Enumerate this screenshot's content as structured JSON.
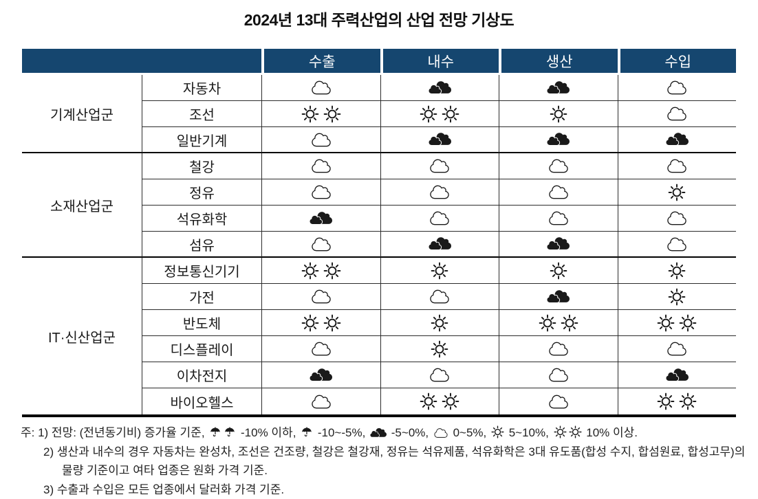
{
  "title": "2024년 13대 주력산업의 산업 전망 기상도",
  "colors": {
    "header_bg": "#15466F",
    "header_text": "#FFFFFF",
    "line": "#2B2B2B",
    "line_strong": "#000000",
    "text": "#1A1A1A"
  },
  "icon_names": {
    "sun": "sun-icon",
    "sun2": "double-sun-icon",
    "cloud": "cloud-outline-icon",
    "cloud-dark": "dark-cloud-icon",
    "umbrella": "umbrella-icon",
    "umbrella2": "double-umbrella-icon"
  },
  "table": {
    "columns": [
      "수출",
      "내수",
      "생산",
      "수입"
    ],
    "groups": [
      {
        "name": "기계산업군",
        "rows": [
          {
            "industry": "자동차",
            "icons": [
              "cloud",
              "cloud-dark",
              "cloud-dark",
              "cloud"
            ]
          },
          {
            "industry": "조선",
            "icons": [
              "sun2",
              "sun2",
              "sun",
              "cloud"
            ]
          },
          {
            "industry": "일반기계",
            "icons": [
              "cloud",
              "cloud-dark",
              "cloud-dark",
              "cloud-dark"
            ]
          }
        ]
      },
      {
        "name": "소재산업군",
        "rows": [
          {
            "industry": "철강",
            "icons": [
              "cloud",
              "cloud",
              "cloud",
              "cloud"
            ]
          },
          {
            "industry": "정유",
            "icons": [
              "cloud",
              "cloud",
              "cloud",
              "sun"
            ]
          },
          {
            "industry": "석유화학",
            "icons": [
              "cloud-dark",
              "cloud",
              "cloud",
              "cloud"
            ]
          },
          {
            "industry": "섬유",
            "icons": [
              "cloud",
              "cloud-dark",
              "cloud-dark",
              "cloud"
            ]
          }
        ]
      },
      {
        "name": "IT·신산업군",
        "rows": [
          {
            "industry": "정보통신기기",
            "icons": [
              "sun2",
              "sun",
              "sun",
              "sun"
            ]
          },
          {
            "industry": "가전",
            "icons": [
              "cloud",
              "cloud",
              "cloud-dark",
              "sun"
            ]
          },
          {
            "industry": "반도체",
            "icons": [
              "sun2",
              "sun",
              "sun2",
              "sun2"
            ]
          },
          {
            "industry": "디스플레이",
            "icons": [
              "cloud",
              "sun",
              "cloud",
              "cloud"
            ]
          },
          {
            "industry": "이차전지",
            "icons": [
              "cloud-dark",
              "cloud",
              "cloud",
              "cloud-dark"
            ]
          },
          {
            "industry": "바이오헬스",
            "icons": [
              "cloud",
              "sun2",
              "cloud",
              "sun2"
            ]
          }
        ]
      }
    ]
  },
  "notes": {
    "note1_parts": [
      {
        "text": "주: 1) 전망: (전년동기비) 증가율 기준, "
      },
      {
        "icon": "umbrella2"
      },
      {
        "text": " -10% 이하, "
      },
      {
        "icon": "umbrella"
      },
      {
        "text": " -10~-5%, "
      },
      {
        "icon": "cloud-dark"
      },
      {
        "text": " -5~0%, "
      },
      {
        "icon": "cloud"
      },
      {
        "text": " 0~5%, "
      },
      {
        "icon": "sun"
      },
      {
        "text": " 5~10%, "
      },
      {
        "icon": "sun2"
      },
      {
        "text": " 10% 이상."
      }
    ],
    "note2": "2) 생산과 내수의 경우 자동차는 완성차, 조선은 건조량, 철강은 철강재, 정유는 석유제품, 석유화학은 3대 유도품(합성 수지, 합섬원료, 합성고무)의 물량 기준이고 여타 업종은 원화 가격 기준.",
    "note3": "3) 수출과 수입은 모든 업종에서 달러화 가격 기준."
  }
}
